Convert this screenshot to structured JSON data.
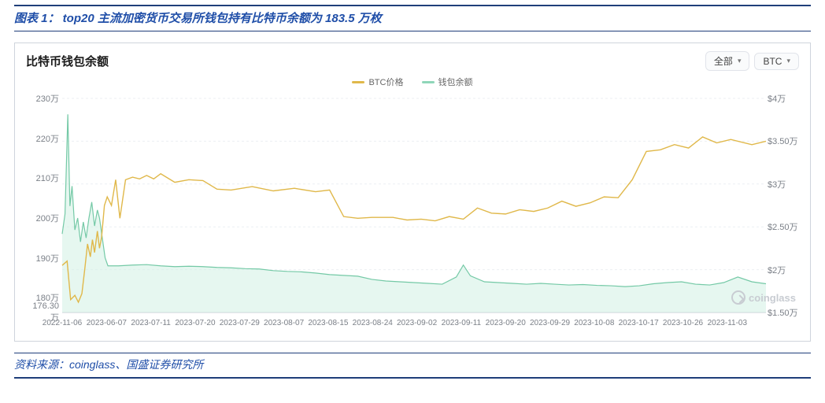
{
  "figure_title": "图表 1： top20 主流加密货币交易所钱包持有比特币余额为 183.5 万枚",
  "source_text": "资料来源：coinglass、国盛证券研究所",
  "chart": {
    "type": "dual-axis-line-area",
    "title": "比特币钱包余额",
    "dropdowns": {
      "range_label": "全部",
      "unit_label": "BTC"
    },
    "legend": [
      {
        "label": "BTC价格",
        "color": "#e0b84a"
      },
      {
        "label": "钱包余额",
        "color": "#8fd6b9"
      }
    ],
    "watermark": "coinglass",
    "left_axis": {
      "min": 1763000,
      "max": 2300000,
      "ticks": [
        {
          "v": 2300000,
          "label": "230万"
        },
        {
          "v": 2200000,
          "label": "220万"
        },
        {
          "v": 2100000,
          "label": "210万"
        },
        {
          "v": 2000000,
          "label": "200万"
        },
        {
          "v": 1900000,
          "label": "190万"
        },
        {
          "v": 1800000,
          "label": "180万"
        },
        {
          "v": 1763000,
          "label": "176.30万"
        }
      ],
      "label_fontsize": 11,
      "label_color": "#7a7f87"
    },
    "right_axis": {
      "min": 15000,
      "max": 40000,
      "ticks": [
        {
          "v": 40000,
          "label": "$4万"
        },
        {
          "v": 35000,
          "label": "$3.50万"
        },
        {
          "v": 30000,
          "label": "$3万"
        },
        {
          "v": 25000,
          "label": "$2.50万"
        },
        {
          "v": 20000,
          "label": "$2万"
        },
        {
          "v": 15000,
          "label": "$1.50万"
        }
      ],
      "label_fontsize": 11,
      "label_color": "#7a7f87"
    },
    "x_axis": {
      "labels": [
        "2022-11-06",
        "2023-06-07",
        "2023-07-11",
        "2023-07-20",
        "2023-07-29",
        "2023-08-07",
        "2023-08-15",
        "2023-08-24",
        "2023-09-02",
        "2023-09-11",
        "2023-09-20",
        "2023-09-29",
        "2023-10-08",
        "2023-10-17",
        "2023-10-26",
        "2023-11-03"
      ],
      "positions_pct": [
        0,
        6.3,
        12.6,
        18.9,
        25.2,
        31.5,
        37.8,
        44.1,
        50.4,
        56.7,
        63.0,
        69.3,
        75.6,
        81.9,
        88.2,
        94.5
      ],
      "label_fontsize": 10,
      "label_color": "#7a7f87"
    },
    "grid": {
      "color": "#eceff3",
      "line_width": 1,
      "dash": "3,3"
    },
    "background_color": "#ffffff",
    "series_btc_price": {
      "color": "#e0b84a",
      "line_width": 1.4,
      "points": [
        [
          0,
          20500
        ],
        [
          0.7,
          21000
        ],
        [
          1.2,
          16500
        ],
        [
          1.8,
          17000
        ],
        [
          2.3,
          16200
        ],
        [
          2.8,
          17200
        ],
        [
          3.2,
          20000
        ],
        [
          3.6,
          23000
        ],
        [
          4.0,
          21500
        ],
        [
          4.3,
          23500
        ],
        [
          4.6,
          22000
        ],
        [
          5.0,
          24500
        ],
        [
          5.3,
          22500
        ],
        [
          5.6,
          23800
        ],
        [
          6.0,
          27500
        ],
        [
          6.4,
          28500
        ],
        [
          7.0,
          27500
        ],
        [
          7.6,
          30500
        ],
        [
          8.2,
          26000
        ],
        [
          9,
          30500
        ],
        [
          10,
          30800
        ],
        [
          11,
          30600
        ],
        [
          12,
          31000
        ],
        [
          13,
          30600
        ],
        [
          14,
          31200
        ],
        [
          16,
          30200
        ],
        [
          18,
          30500
        ],
        [
          20,
          30400
        ],
        [
          22,
          29400
        ],
        [
          24,
          29300
        ],
        [
          27,
          29700
        ],
        [
          30,
          29200
        ],
        [
          33,
          29500
        ],
        [
          36,
          29100
        ],
        [
          38,
          29300
        ],
        [
          40,
          26200
        ],
        [
          42,
          26000
        ],
        [
          44,
          26100
        ],
        [
          47,
          26100
        ],
        [
          49,
          25800
        ],
        [
          51,
          25900
        ],
        [
          53,
          25700
        ],
        [
          55,
          26200
        ],
        [
          57,
          25900
        ],
        [
          59,
          27200
        ],
        [
          61,
          26600
        ],
        [
          63,
          26500
        ],
        [
          65,
          27000
        ],
        [
          67,
          26800
        ],
        [
          69,
          27200
        ],
        [
          71,
          28000
        ],
        [
          73,
          27400
        ],
        [
          75,
          27800
        ],
        [
          77,
          28500
        ],
        [
          79,
          28400
        ],
        [
          81,
          30500
        ],
        [
          83,
          33800
        ],
        [
          85,
          34000
        ],
        [
          87,
          34600
        ],
        [
          89,
          34200
        ],
        [
          91,
          35500
        ],
        [
          93,
          34800
        ],
        [
          95,
          35200
        ],
        [
          98,
          34600
        ],
        [
          100,
          35000
        ]
      ]
    },
    "series_wallet_balance": {
      "line_color": "#74c9a6",
      "fill_color": "#d2f0e3",
      "fill_opacity": 0.55,
      "line_width": 1.2,
      "points": [
        [
          0,
          1960000
        ],
        [
          0.4,
          2010000
        ],
        [
          0.8,
          2260000
        ],
        [
          1.1,
          2030000
        ],
        [
          1.4,
          2080000
        ],
        [
          1.8,
          1970000
        ],
        [
          2.2,
          2000000
        ],
        [
          2.6,
          1940000
        ],
        [
          3.0,
          1990000
        ],
        [
          3.4,
          1950000
        ],
        [
          3.8,
          2000000
        ],
        [
          4.2,
          2040000
        ],
        [
          4.6,
          1980000
        ],
        [
          5.0,
          2020000
        ],
        [
          5.3,
          2000000
        ],
        [
          5.7,
          1950000
        ],
        [
          6.1,
          1900000
        ],
        [
          6.5,
          1880000
        ],
        [
          8,
          1880000
        ],
        [
          10,
          1882000
        ],
        [
          12,
          1883000
        ],
        [
          14,
          1880000
        ],
        [
          16,
          1878000
        ],
        [
          18,
          1879000
        ],
        [
          20,
          1878000
        ],
        [
          22,
          1876000
        ],
        [
          24,
          1875000
        ],
        [
          26,
          1873000
        ],
        [
          28,
          1872000
        ],
        [
          30,
          1868000
        ],
        [
          32,
          1866000
        ],
        [
          34,
          1865000
        ],
        [
          36,
          1862000
        ],
        [
          38,
          1858000
        ],
        [
          40,
          1856000
        ],
        [
          42,
          1854000
        ],
        [
          44,
          1846000
        ],
        [
          46,
          1842000
        ],
        [
          48,
          1840000
        ],
        [
          50,
          1838000
        ],
        [
          52,
          1836000
        ],
        [
          54,
          1834000
        ],
        [
          56,
          1852000
        ],
        [
          57,
          1882000
        ],
        [
          58,
          1855000
        ],
        [
          60,
          1840000
        ],
        [
          62,
          1838000
        ],
        [
          64,
          1836000
        ],
        [
          66,
          1834000
        ],
        [
          68,
          1836000
        ],
        [
          70,
          1834000
        ],
        [
          72,
          1832000
        ],
        [
          74,
          1833000
        ],
        [
          76,
          1831000
        ],
        [
          78,
          1830000
        ],
        [
          80,
          1828000
        ],
        [
          82,
          1830000
        ],
        [
          84,
          1835000
        ],
        [
          86,
          1838000
        ],
        [
          88,
          1840000
        ],
        [
          90,
          1834000
        ],
        [
          92,
          1832000
        ],
        [
          94,
          1838000
        ],
        [
          96,
          1852000
        ],
        [
          98,
          1840000
        ],
        [
          100,
          1835000
        ]
      ]
    }
  }
}
